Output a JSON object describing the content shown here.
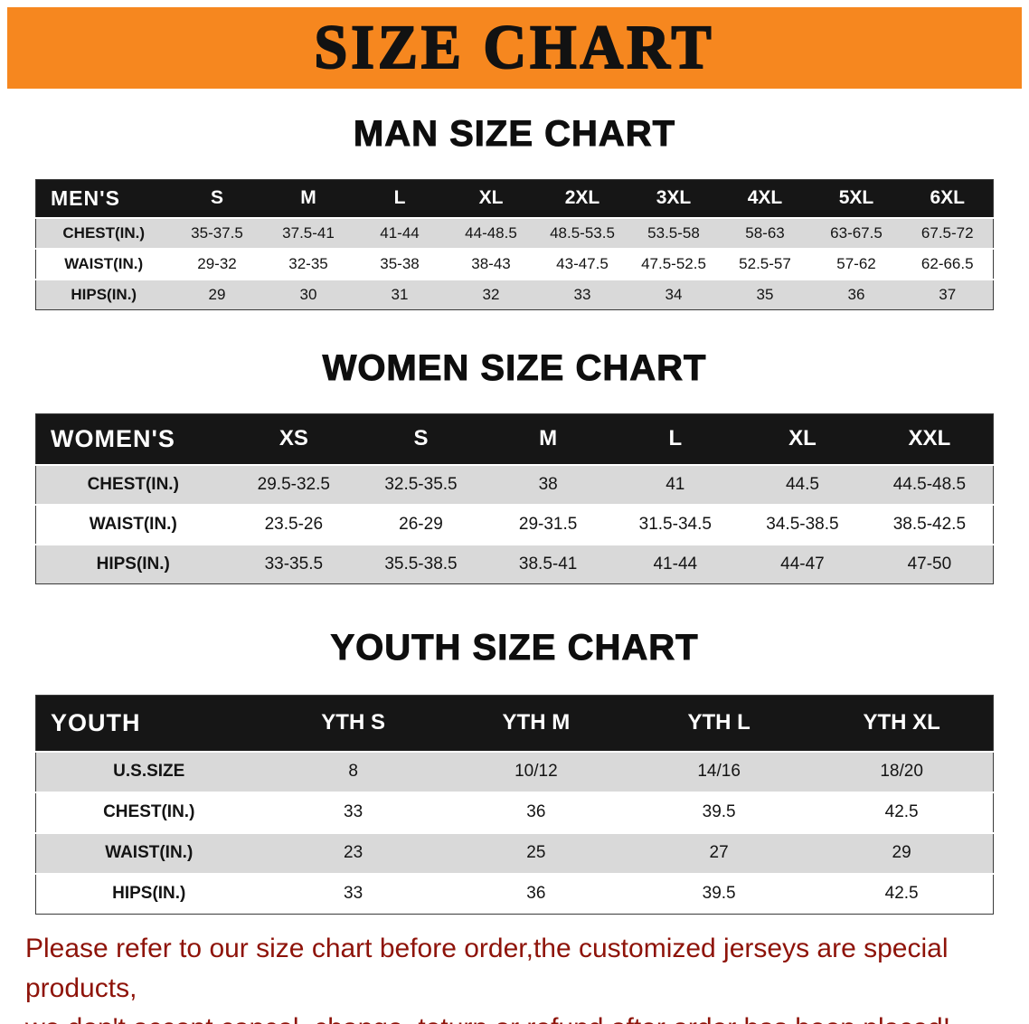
{
  "banner": {
    "title": "SIZE CHART"
  },
  "sections": [
    {
      "heading": "MAN SIZE CHART",
      "table": {
        "header": [
          "MEN'S",
          "S",
          "M",
          "L",
          "XL",
          "2XL",
          "3XL",
          "4XL",
          "5XL",
          "6XL"
        ],
        "rows": [
          [
            "CHEST(IN.)",
            "35-37.5",
            "37.5-41",
            "41-44",
            "44-48.5",
            "48.5-53.5",
            "53.5-58",
            "58-63",
            "63-67.5",
            "67.5-72"
          ],
          [
            "WAIST(IN.)",
            "29-32",
            "32-35",
            "35-38",
            "38-43",
            "43-47.5",
            "47.5-52.5",
            "52.5-57",
            "57-62",
            "62-66.5"
          ],
          [
            "HIPS(IN.)",
            "29",
            "30",
            "31",
            "32",
            "33",
            "34",
            "35",
            "36",
            "37"
          ]
        ]
      }
    },
    {
      "heading": "WOMEN SIZE CHART",
      "table": {
        "header": [
          "WOMEN'S",
          "XS",
          "S",
          "M",
          "L",
          "XL",
          "XXL"
        ],
        "rows": [
          [
            "CHEST(IN.)",
            "29.5-32.5",
            "32.5-35.5",
            "38",
            "41",
            "44.5",
            "44.5-48.5"
          ],
          [
            "WAIST(IN.)",
            "23.5-26",
            "26-29",
            "29-31.5",
            "31.5-34.5",
            "34.5-38.5",
            "38.5-42.5"
          ],
          [
            "HIPS(IN.)",
            "33-35.5",
            "35.5-38.5",
            "38.5-41",
            "41-44",
            "44-47",
            "47-50"
          ]
        ]
      }
    },
    {
      "heading": "YOUTH SIZE CHART",
      "table": {
        "header": [
          "YOUTH",
          "YTH S",
          "YTH M",
          "YTH L",
          "YTH XL"
        ],
        "rows": [
          [
            "U.S.SIZE",
            "8",
            "10/12",
            "14/16",
            "18/20"
          ],
          [
            "CHEST(IN.)",
            "33",
            "36",
            "39.5",
            "42.5"
          ],
          [
            "WAIST(IN.)",
            "23",
            "25",
            "27",
            "29"
          ],
          [
            "HIPS(IN.)",
            "33",
            "36",
            "39.5",
            "42.5"
          ]
        ]
      }
    }
  ],
  "footer": {
    "line1": "Please refer to our size chart before order,the customized jerseys are special products,",
    "line2": "we don't accept cancel, change, teturn or refund after order has been placed!"
  },
  "colors": {
    "banner_bg": "#f6871f",
    "header_bg": "#161616",
    "header_text": "#ffffff",
    "row_stripe": "#d9d9d9",
    "disclaimer_text": "#8e1309",
    "text": "#111111"
  }
}
